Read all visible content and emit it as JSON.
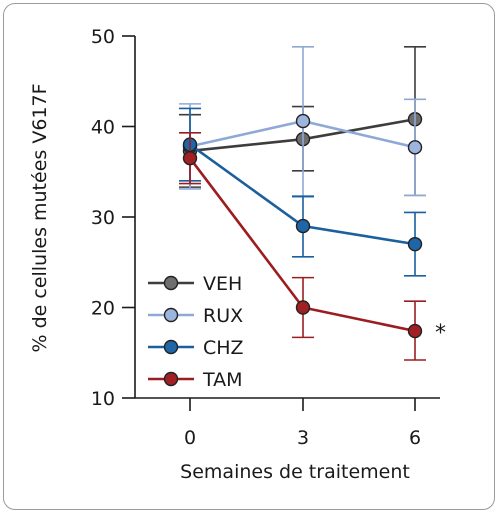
{
  "chart_data": {
    "type": "line",
    "title": "",
    "xlabel": "Semaines de traitement",
    "ylabel": "% de cellules mutées V617F",
    "x": [
      0,
      3,
      6
    ],
    "xticks": [
      "0",
      "3",
      "6"
    ],
    "ylim": [
      10,
      50
    ],
    "yticks": [
      "10",
      "20",
      "30",
      "40",
      "50"
    ],
    "grid": false,
    "legend_position": "bottom-left",
    "series": [
      {
        "name": "VEH",
        "color": "#3d3d3d",
        "fill": "#6e6e6e",
        "values": [
          37.3,
          38.6,
          40.8
        ],
        "err_low": [
          4.0,
          3.5,
          8.4
        ],
        "err_high": [
          4.0,
          3.6,
          8.0
        ]
      },
      {
        "name": "RUX",
        "color": "#8fa9d6",
        "fill": "#9db4de",
        "values": [
          37.8,
          40.6,
          37.7
        ],
        "err_low": [
          4.7,
          8.4,
          5.3
        ],
        "err_high": [
          4.7,
          8.2,
          5.3
        ]
      },
      {
        "name": "CHZ",
        "color": "#1a5f9e",
        "fill": "#1f66a8",
        "values": [
          38.0,
          29.0,
          27.0
        ],
        "err_low": [
          4.0,
          3.4,
          3.5
        ],
        "err_high": [
          4.0,
          3.3,
          3.5
        ]
      },
      {
        "name": "TAM",
        "color": "#9b1d20",
        "fill": "#a02024",
        "values": [
          36.5,
          20.0,
          17.4
        ],
        "err_low": [
          2.8,
          3.3,
          3.2
        ],
        "err_high": [
          2.8,
          3.3,
          3.3
        ]
      }
    ],
    "annotations": [
      {
        "text": "*",
        "series": "TAM",
        "x": 6
      }
    ]
  }
}
